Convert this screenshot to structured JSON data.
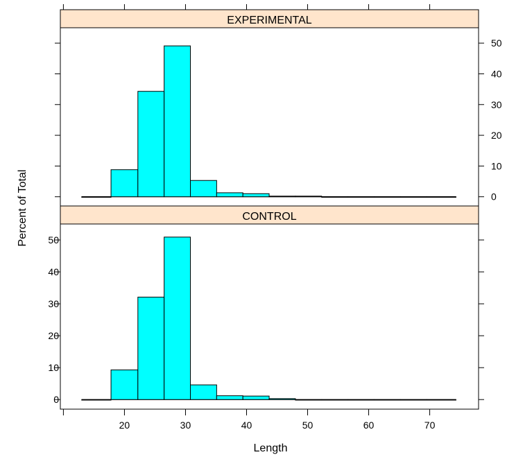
{
  "chart_data": {
    "type": "bar",
    "xlabel": "Length",
    "ylabel": "Percent of Total",
    "xlim": [
      9.5,
      78
    ],
    "ylim": [
      -3,
      55
    ],
    "x_ticks": [
      "20",
      "30",
      "40",
      "50",
      "60",
      "70"
    ],
    "y_ticks": [
      "0",
      "10",
      "20",
      "30",
      "40",
      "50"
    ],
    "bin_edges": [
      13,
      17.8,
      22.2,
      26.5,
      30.8,
      35.1,
      39.4,
      43.7,
      48,
      52.3,
      56.6,
      60.9,
      65.2,
      69.5,
      74.3
    ],
    "bar_color": "#00ffff",
    "strip_color": "#ffe5cc",
    "panels": [
      {
        "name": "EXPERIMENTAL",
        "values": [
          0,
          8.8,
          34.3,
          49.1,
          5.3,
          1.3,
          1.0,
          0.2,
          0.2,
          0,
          0,
          0,
          0,
          0
        ]
      },
      {
        "name": "CONTROL",
        "values": [
          0,
          9.3,
          32.1,
          50.9,
          4.6,
          1.2,
          1.1,
          0.3,
          0,
          0,
          0,
          0,
          0,
          0
        ]
      }
    ]
  }
}
